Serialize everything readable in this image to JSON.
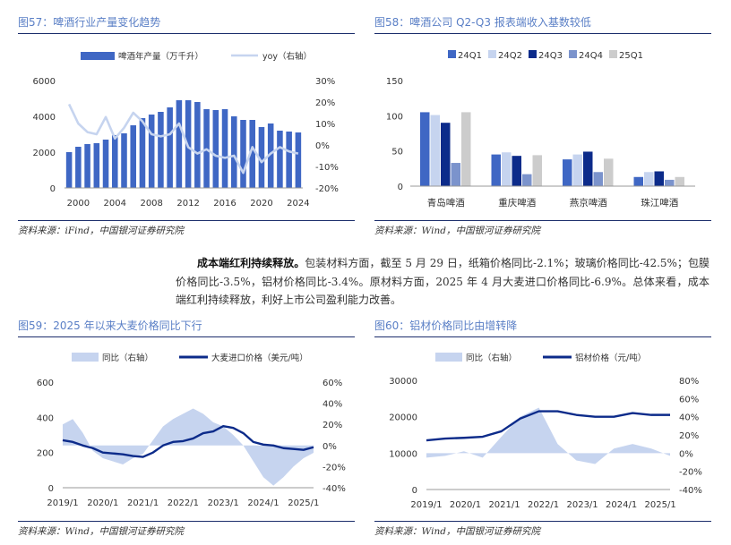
{
  "figures": [
    {
      "title": "图57：啤酒行业产量变化趋势",
      "source": "资料来源：iFind，中国银河证券研究院"
    },
    {
      "title": "图58：啤酒公司 Q2-Q3 报表端收入基数较低",
      "source": "资料来源：Wind，中国银河证券研究院"
    },
    {
      "title": "图59：2025 年以来大麦价格同比下行",
      "source": "资料来源：Wind，中国银河证券研究院"
    },
    {
      "title": "图60：铝材价格同比由增转降",
      "source": "资料来源：Wind，中国银河证券研究院"
    }
  ],
  "paragraph": {
    "bold": "成本端红利持续释放。",
    "text": "包装材料方面，截至 5 月 29 日，纸箱价格同比-2.1%；玻璃价格同比-42.5%；包膜价格同比-3.5%，铝材价格同比-3.4%。原材料方面，2025 年 4 月大麦进口价格同比-6.9%。总体来看，成本端红利持续释放，利好上市公司盈利能力改善。"
  },
  "colors": {
    "navy": "#0c2b8a",
    "blue": "#3f67c4",
    "lightblue": "#c6d4ef",
    "gray": "#cccccc",
    "steel": "#7b93cc"
  },
  "chart_data": [
    {
      "type": "bar",
      "legend": [
        "啤酒年产量（万千升）",
        "yoy（右轴）"
      ],
      "x": [
        1999,
        2000,
        2001,
        2002,
        2003,
        2004,
        2005,
        2006,
        2007,
        2008,
        2009,
        2010,
        2011,
        2012,
        2013,
        2014,
        2015,
        2016,
        2017,
        2018,
        2019,
        2020,
        2021,
        2022,
        2023,
        2024
      ],
      "series": [
        {
          "name": "啤酒年产量（万千升）",
          "axis": "left",
          "values": [
            2000,
            2300,
            2450,
            2500,
            2700,
            2950,
            3050,
            3500,
            3900,
            4100,
            4250,
            4500,
            4900,
            4900,
            4800,
            4400,
            4350,
            4400,
            4000,
            3800,
            3800,
            3400,
            3600,
            3200,
            3150,
            3100
          ]
        },
        {
          "name": "yoy（右轴）",
          "axis": "right",
          "values": [
            19,
            10,
            6,
            5,
            13,
            3,
            8,
            15,
            11,
            5,
            4,
            5,
            10,
            -1,
            -4,
            -2,
            -5,
            -6,
            -5,
            -13,
            -1,
            -8,
            -4,
            -1,
            -3,
            -4
          ]
        }
      ],
      "x_ticks": [
        "2000",
        "2004",
        "2008",
        "2012",
        "2016",
        "2020",
        "2024"
      ],
      "ylim_left": [
        0,
        6000
      ],
      "y_ticks_left": [
        "0",
        "2000",
        "4000",
        "6000"
      ],
      "ylim_right": [
        -20,
        30
      ],
      "y_ticks_right": [
        "-20%",
        "-10%",
        "0%",
        "10%",
        "20%",
        "30%"
      ]
    },
    {
      "type": "bar",
      "legend": [
        "24Q1",
        "24Q2",
        "24Q3",
        "24Q4",
        "25Q1"
      ],
      "categories": [
        "青岛啤酒",
        "重庆啤酒",
        "燕京啤酒",
        "珠江啤酒"
      ],
      "series": [
        {
          "name": "24Q1",
          "values": [
            105,
            45,
            38,
            13
          ]
        },
        {
          "name": "24Q2",
          "values": [
            101,
            48,
            45,
            20
          ]
        },
        {
          "name": "24Q3",
          "values": [
            90,
            43,
            49,
            21
          ]
        },
        {
          "name": "24Q4",
          "values": [
            33,
            17,
            20,
            9
          ]
        },
        {
          "name": "25Q1",
          "values": [
            105,
            44,
            39,
            13
          ]
        }
      ],
      "ylim": [
        0,
        150
      ],
      "y_ticks": [
        "0",
        "50",
        "100",
        "150"
      ]
    },
    {
      "type": "area",
      "legend": [
        "同比（右轴）",
        "大麦进口价格（美元/吨）"
      ],
      "x": [
        "2019/1",
        "2019/4",
        "2019/7",
        "2019/10",
        "2020/1",
        "2020/4",
        "2020/7",
        "2020/10",
        "2021/1",
        "2021/4",
        "2021/7",
        "2021/10",
        "2022/1",
        "2022/4",
        "2022/7",
        "2022/10",
        "2023/1",
        "2023/4",
        "2023/7",
        "2023/10",
        "2024/1",
        "2024/4",
        "2024/7",
        "2024/10",
        "2025/1",
        "2025/4"
      ],
      "series": [
        {
          "name": "大麦进口价格（美元/吨）",
          "axis": "left",
          "values": [
            270,
            260,
            240,
            225,
            200,
            195,
            190,
            180,
            175,
            200,
            240,
            260,
            265,
            280,
            310,
            320,
            350,
            340,
            310,
            260,
            245,
            240,
            225,
            220,
            215,
            230
          ]
        },
        {
          "name": "同比（右轴）",
          "axis": "right",
          "values": [
            20,
            25,
            12,
            -5,
            -12,
            -15,
            -18,
            -12,
            -8,
            5,
            18,
            25,
            30,
            35,
            30,
            22,
            18,
            10,
            0,
            -15,
            -30,
            -38,
            -30,
            -20,
            -12,
            -7
          ]
        }
      ],
      "x_ticks": [
        "2019/1",
        "2020/1",
        "2021/1",
        "2022/1",
        "2023/1",
        "2024/1",
        "2025/1"
      ],
      "ylim_left": [
        0,
        600
      ],
      "y_ticks_left": [
        "0",
        "200",
        "400",
        "600"
      ],
      "ylim_right": [
        -40,
        60
      ],
      "y_ticks_right": [
        "-40%",
        "-20%",
        "0%",
        "20%",
        "40%",
        "60%"
      ]
    },
    {
      "type": "area",
      "legend": [
        "同比（右轴）",
        "铝材价格（元/吨）"
      ],
      "x": [
        "2019/1",
        "2019/7",
        "2020/1",
        "2020/7",
        "2021/1",
        "2021/7",
        "2022/1",
        "2022/7",
        "2023/1",
        "2023/7",
        "2024/1",
        "2024/7",
        "2025/1",
        "2025/5"
      ],
      "series": [
        {
          "name": "铝材价格（元/吨）",
          "axis": "left",
          "values": [
            13500,
            14000,
            14200,
            14500,
            16000,
            19500,
            21500,
            21500,
            20500,
            20000,
            20000,
            21000,
            20500,
            20500
          ]
        },
        {
          "name": "同比（右轴）",
          "axis": "right",
          "values": [
            -5,
            -3,
            2,
            -5,
            18,
            40,
            50,
            10,
            -8,
            -12,
            5,
            10,
            5,
            -3
          ]
        }
      ],
      "x_ticks": [
        "2019/1",
        "2020/1",
        "2021/1",
        "2022/1",
        "2023/1",
        "2024/1",
        "2025/1"
      ],
      "ylim_left": [
        0,
        30000
      ],
      "y_ticks_left": [
        "0",
        "10000",
        "20000",
        "30000"
      ],
      "ylim_right": [
        -40,
        80
      ],
      "y_ticks_right": [
        "-40%",
        "-20%",
        "0%",
        "20%",
        "40%",
        "60%",
        "80%"
      ]
    }
  ]
}
